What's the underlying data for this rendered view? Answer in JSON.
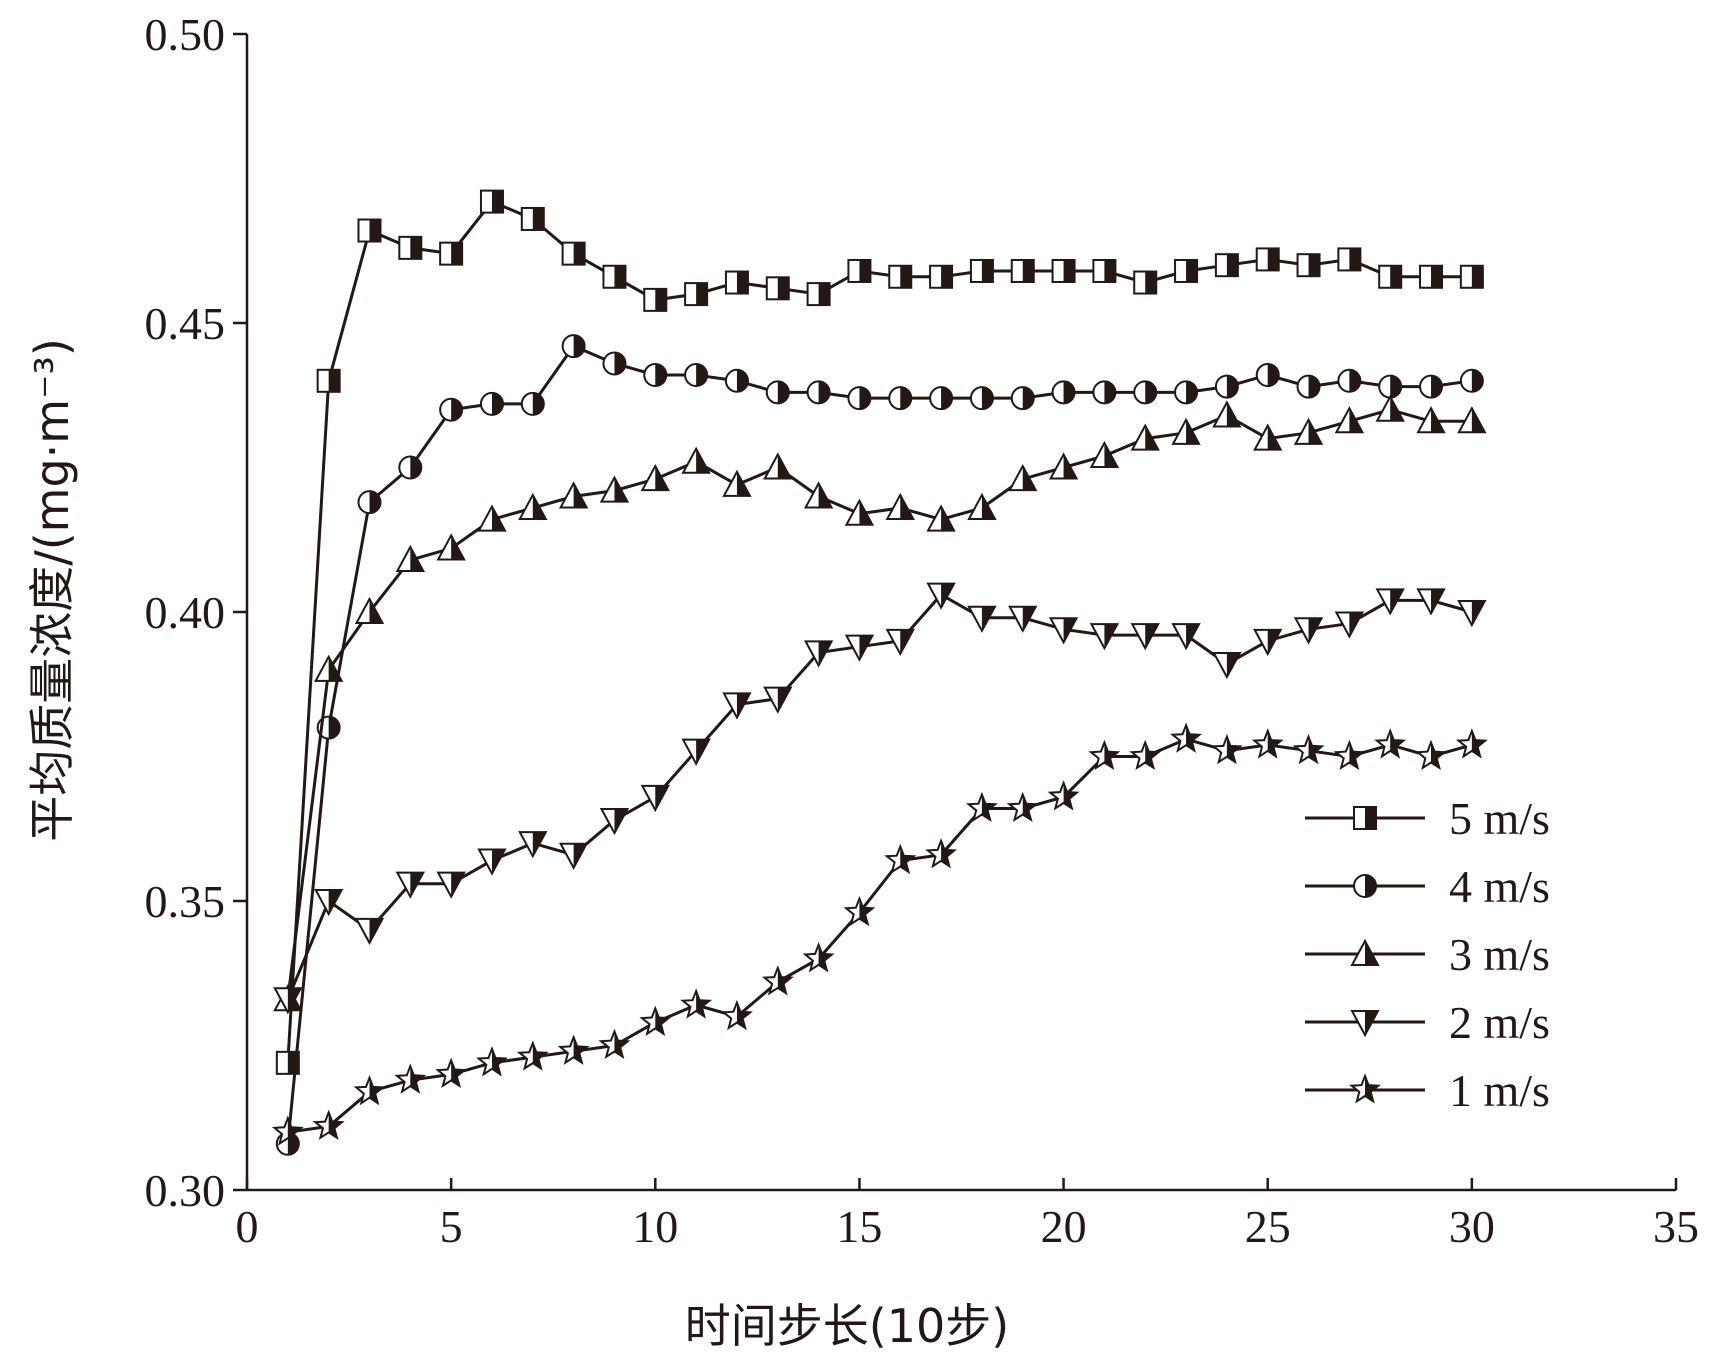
{
  "chart_data": {
    "type": "line",
    "xlabel": "时间步长(10步)",
    "ylabel": "平均质量浓度/(mg·m⁻³)",
    "xlim": [
      0,
      35
    ],
    "ylim": [
      0.3,
      0.5
    ],
    "xticks": [
      "0",
      "5",
      "10",
      "15",
      "20",
      "25",
      "30",
      "35"
    ],
    "yticks": [
      "0.30",
      "0.35",
      "0.40",
      "0.45",
      "0.50"
    ],
    "grid": false,
    "legend_position": "bottom-right",
    "x": [
      1,
      2,
      3,
      4,
      5,
      6,
      7,
      8,
      9,
      10,
      11,
      12,
      13,
      14,
      15,
      16,
      17,
      18,
      19,
      20,
      21,
      22,
      23,
      24,
      25,
      26,
      27,
      28,
      29,
      30
    ],
    "series": [
      {
        "name": "5 m/s",
        "marker": "square",
        "values": [
          0.322,
          0.44,
          0.466,
          0.463,
          0.462,
          0.471,
          0.468,
          0.462,
          0.458,
          0.454,
          0.455,
          0.457,
          0.456,
          0.455,
          0.459,
          0.458,
          0.458,
          0.459,
          0.459,
          0.459,
          0.459,
          0.457,
          0.459,
          0.46,
          0.461,
          0.46,
          0.461,
          0.458,
          0.458,
          0.458
        ]
      },
      {
        "name": "4 m/s",
        "marker": "circle",
        "values": [
          0.308,
          0.38,
          0.419,
          0.425,
          0.435,
          0.436,
          0.436,
          0.446,
          0.443,
          0.441,
          0.441,
          0.44,
          0.438,
          0.438,
          0.437,
          0.437,
          0.437,
          0.437,
          0.437,
          0.438,
          0.438,
          0.438,
          0.438,
          0.439,
          0.441,
          0.439,
          0.44,
          0.439,
          0.439,
          0.44
        ]
      },
      {
        "name": "3 m/s",
        "marker": "triangle-up",
        "values": [
          0.333,
          0.39,
          0.4,
          0.409,
          0.411,
          0.416,
          0.418,
          0.42,
          0.421,
          0.423,
          0.426,
          0.422,
          0.425,
          0.42,
          0.417,
          0.418,
          0.416,
          0.418,
          0.423,
          0.425,
          0.427,
          0.43,
          0.431,
          0.434,
          0.43,
          0.431,
          0.433,
          0.435,
          0.433,
          0.433
        ]
      },
      {
        "name": "2 m/s",
        "marker": "triangle-down",
        "values": [
          0.333,
          0.35,
          0.345,
          0.353,
          0.353,
          0.357,
          0.36,
          0.358,
          0.364,
          0.368,
          0.376,
          0.384,
          0.385,
          0.393,
          0.394,
          0.395,
          0.403,
          0.399,
          0.399,
          0.397,
          0.396,
          0.396,
          0.396,
          0.391,
          0.395,
          0.397,
          0.398,
          0.402,
          0.402,
          0.4
        ]
      },
      {
        "name": "1 m/s",
        "marker": "star",
        "values": [
          0.31,
          0.311,
          0.317,
          0.319,
          0.32,
          0.322,
          0.323,
          0.324,
          0.325,
          0.329,
          0.332,
          0.33,
          0.336,
          0.34,
          0.348,
          0.357,
          0.358,
          0.366,
          0.366,
          0.368,
          0.375,
          0.375,
          0.378,
          0.376,
          0.377,
          0.376,
          0.375,
          0.377,
          0.375,
          0.377
        ]
      }
    ],
    "colors": {
      "ink": "#231815",
      "marker_fill": "#ffffff"
    }
  }
}
